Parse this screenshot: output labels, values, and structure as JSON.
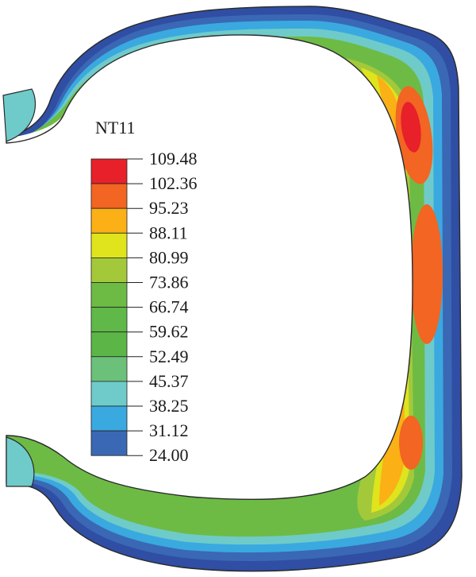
{
  "legend": {
    "title": "NT11",
    "levels": [
      "109.48",
      "102.36",
      "95.23",
      "88.11",
      "80.99",
      "73.86",
      "66.74",
      "59.62",
      "52.49",
      "45.37",
      "38.25",
      "31.12",
      "24.00"
    ],
    "colors": [
      "#e8202a",
      "#f26522",
      "#fbb016",
      "#dfe41c",
      "#a3c93b",
      "#6dbb45",
      "#5fb847",
      "#5bb647",
      "#6bc17a",
      "#6fcbc9",
      "#3aa9e0",
      "#3a68b4",
      "#2f4ea4"
    ]
  }
}
